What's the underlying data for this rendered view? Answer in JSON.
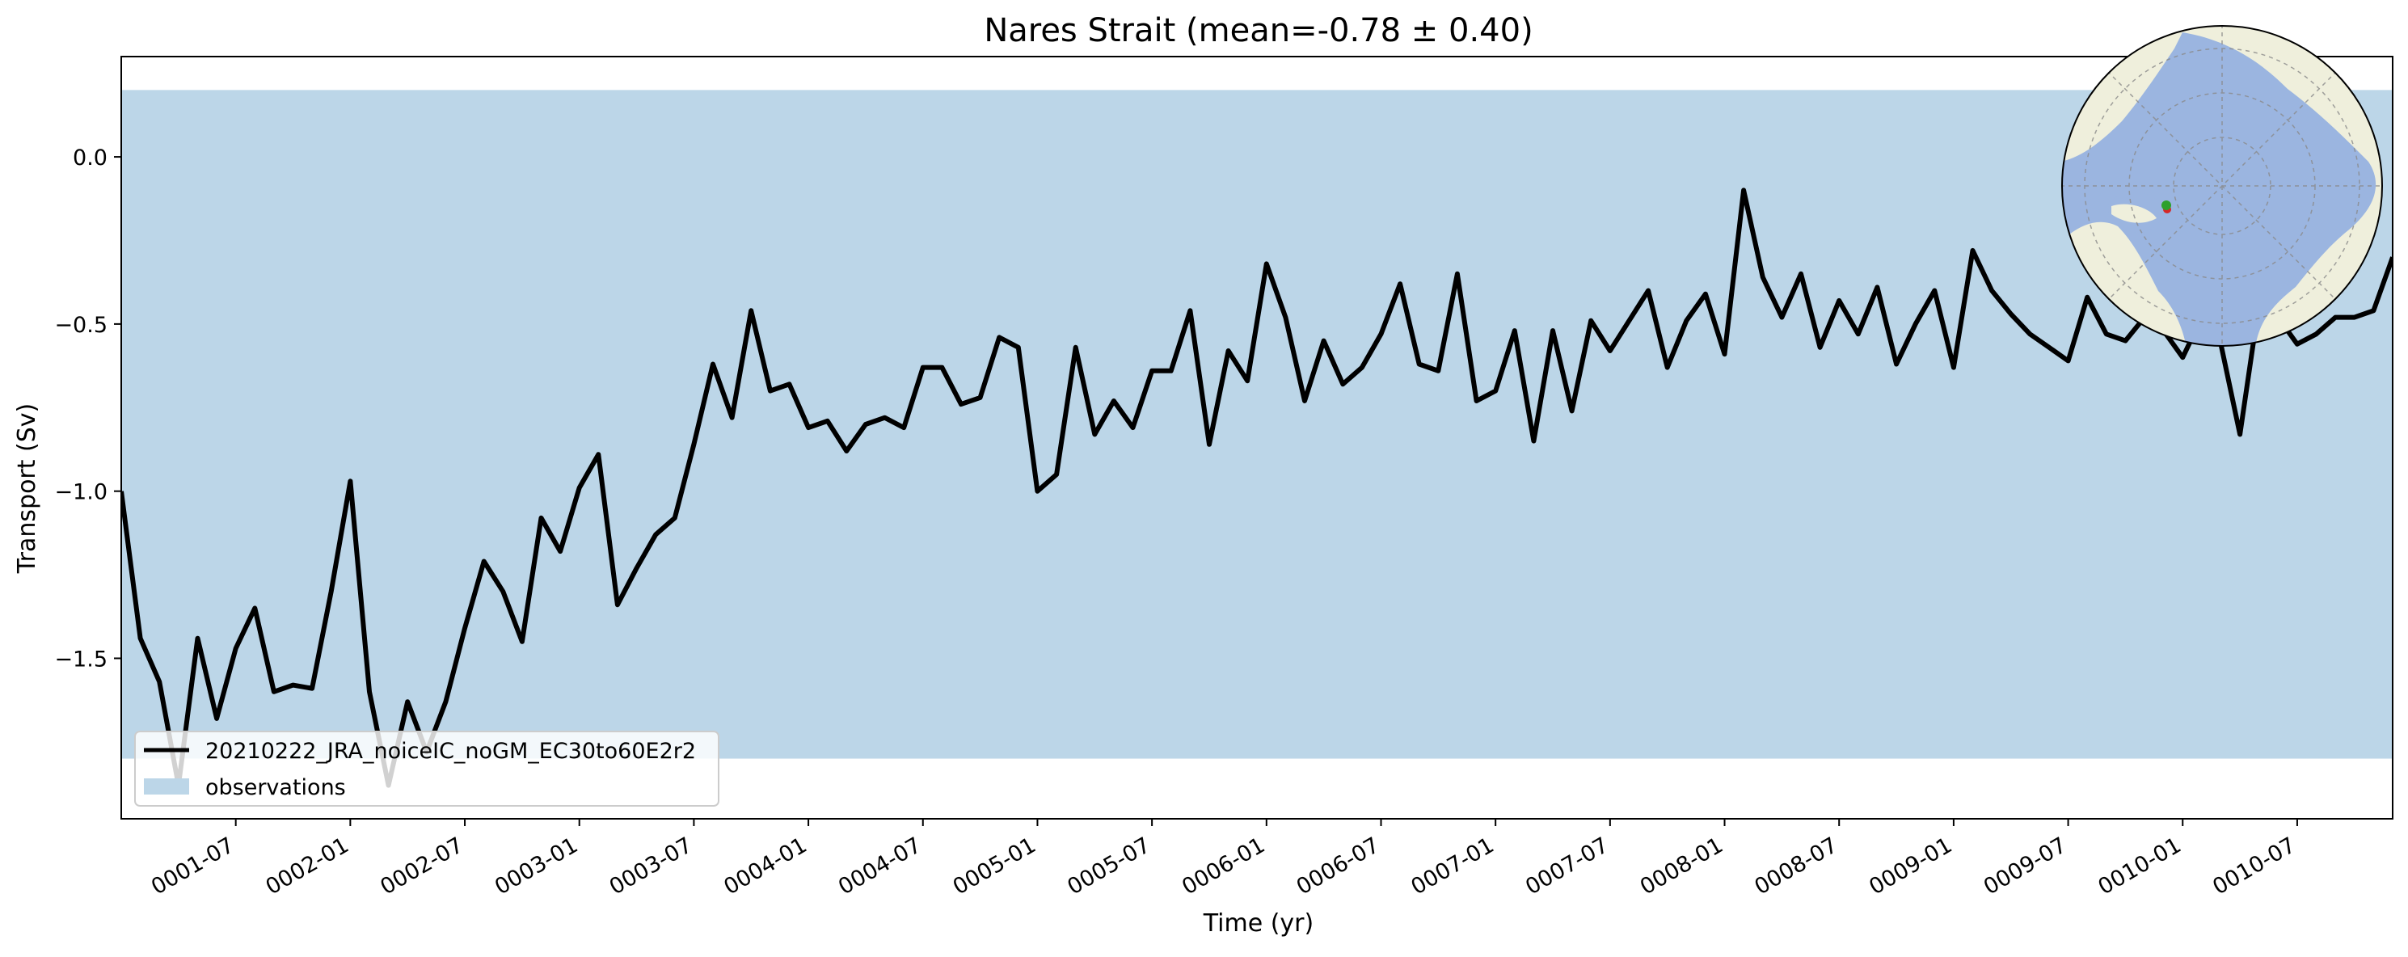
{
  "chart_data": {
    "type": "line",
    "title": "Nares Strait (mean=-0.78 ± 0.40)",
    "xlabel": "Time (yr)",
    "ylabel": "Transport (Sv)",
    "x_tick_labels": [
      "0001-07",
      "0002-01",
      "0002-07",
      "0003-01",
      "0003-07",
      "0004-01",
      "0004-07",
      "0005-01",
      "0005-07",
      "0006-01",
      "0006-07",
      "0007-01",
      "0007-07",
      "0008-01",
      "0008-07",
      "0009-01",
      "0009-07",
      "0010-01",
      "0010-07"
    ],
    "y_tick_labels": [
      "0.0",
      "−0.5",
      "−1.0",
      "−1.5"
    ],
    "y_ticks": [
      0.0,
      -0.5,
      -1.0,
      -1.5
    ],
    "ylim": [
      -1.98,
      0.3
    ],
    "x_first_month": "0001-01",
    "x_last_month": "0010-12",
    "grid": false,
    "legend_position": "lower-left",
    "observations_band": {
      "name": "observations",
      "low": -1.8,
      "high": 0.2,
      "color": "#bcd6e8"
    },
    "series": [
      {
        "name": "20210222_JRA_noiceIC_noGM_EC30to60E2r2",
        "color": "#000000",
        "values": [
          -1.0,
          -1.44,
          -1.57,
          -1.88,
          -1.44,
          -1.68,
          -1.47,
          -1.35,
          -1.6,
          -1.58,
          -1.59,
          -1.3,
          -0.97,
          -1.6,
          -1.88,
          -1.63,
          -1.78,
          -1.63,
          -1.41,
          -1.21,
          -1.3,
          -1.45,
          -1.08,
          -1.18,
          -0.99,
          -0.89,
          -1.34,
          -1.23,
          -1.13,
          -1.08,
          -0.86,
          -0.62,
          -0.78,
          -0.46,
          -0.7,
          -0.68,
          -0.81,
          -0.79,
          -0.88,
          -0.8,
          -0.78,
          -0.81,
          -0.63,
          -0.63,
          -0.74,
          -0.72,
          -0.54,
          -0.57,
          -1.0,
          -0.95,
          -0.57,
          -0.83,
          -0.73,
          -0.81,
          -0.64,
          -0.64,
          -0.46,
          -0.86,
          -0.58,
          -0.67,
          -0.32,
          -0.48,
          -0.73,
          -0.55,
          -0.68,
          -0.63,
          -0.53,
          -0.38,
          -0.62,
          -0.64,
          -0.35,
          -0.73,
          -0.7,
          -0.52,
          -0.85,
          -0.52,
          -0.76,
          -0.49,
          -0.58,
          -0.49,
          -0.4,
          -0.63,
          -0.49,
          -0.41,
          -0.59,
          -0.1,
          -0.36,
          -0.48,
          -0.35,
          -0.57,
          -0.43,
          -0.53,
          -0.39,
          -0.62,
          -0.5,
          -0.4,
          -0.63,
          -0.28,
          -0.4,
          -0.47,
          -0.53,
          -0.57,
          -0.61,
          -0.42,
          -0.53,
          -0.55,
          -0.48,
          -0.52,
          -0.6,
          -0.48,
          -0.56,
          -0.83,
          -0.44,
          -0.48,
          -0.56,
          -0.53,
          -0.48,
          -0.48,
          -0.46,
          -0.3
        ]
      }
    ],
    "inset_map": {
      "description_icon": "arctic-polar-map-icon",
      "land_color": "#efefdc",
      "ocean_color": "#9bb5e0",
      "markers": [
        "#2ca02c",
        "#d62728"
      ]
    }
  }
}
